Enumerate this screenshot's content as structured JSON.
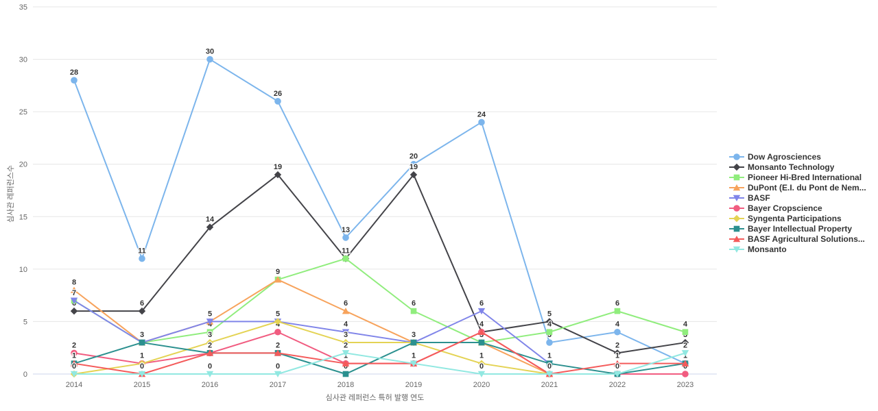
{
  "chart_data": {
    "type": "line",
    "title": "",
    "xlabel": "심사관 레퍼런스 특허 발행 연도",
    "ylabel": "심사관 레퍼런스수",
    "x": [
      "2014",
      "2015",
      "2016",
      "2017",
      "2018",
      "2019",
      "2020",
      "2021",
      "2022",
      "2023"
    ],
    "ylim": [
      0,
      35
    ],
    "yticks": [
      0,
      5,
      10,
      15,
      20,
      25,
      30,
      35
    ],
    "grid": "horizontal",
    "legend_position": "right",
    "data_labels": "on",
    "series": [
      {
        "name": "Dow Agrosciences",
        "color": "#7cb5ec",
        "symbol": "circle",
        "values": [
          28,
          11,
          30,
          26,
          13,
          20,
          24,
          3,
          4,
          1
        ]
      },
      {
        "name": "Monsanto Technology",
        "color": "#434348",
        "symbol": "diamond",
        "values": [
          6,
          6,
          14,
          19,
          11,
          19,
          4,
          5,
          2,
          3
        ]
      },
      {
        "name": "Pioneer Hi-Bred International",
        "color": "#90ed7d",
        "symbol": "square",
        "values": [
          7,
          3,
          4,
          9,
          11,
          6,
          3,
          4,
          6,
          4
        ]
      },
      {
        "name": "DuPont (E.I. du Pont de Nem...",
        "color": "#f7a35c",
        "symbol": "triangle",
        "values": [
          8,
          3,
          5,
          9,
          6,
          3,
          3,
          0,
          null,
          null
        ]
      },
      {
        "name": "BASF",
        "color": "#8085e9",
        "symbol": "triangle-down",
        "values": [
          7,
          3,
          5,
          5,
          4,
          3,
          6,
          1,
          null,
          null
        ]
      },
      {
        "name": "Bayer Cropscience",
        "color": "#f15c80",
        "symbol": "circle",
        "values": [
          2,
          1,
          2,
          4,
          1,
          1,
          4,
          0,
          0,
          0
        ]
      },
      {
        "name": "Syngenta Participations",
        "color": "#e4d354",
        "symbol": "diamond",
        "values": [
          0,
          1,
          3,
          5,
          3,
          3,
          1,
          0,
          null,
          null
        ]
      },
      {
        "name": "Bayer Intellectual Property",
        "color": "#2b908f",
        "symbol": "square",
        "values": [
          1,
          3,
          2,
          2,
          0,
          3,
          3,
          1,
          0,
          1
        ]
      },
      {
        "name": "BASF Agricultural Solutions...",
        "color": "#f45b5b",
        "symbol": "triangle",
        "values": [
          1,
          0,
          2,
          2,
          1,
          1,
          4,
          0,
          1,
          1
        ]
      },
      {
        "name": "Monsanto",
        "color": "#91e8e1",
        "symbol": "triangle-down",
        "values": [
          0,
          0,
          0,
          0,
          2,
          1,
          0,
          0,
          0,
          2
        ]
      }
    ],
    "colors": {
      "gridline": "#e6e6e6",
      "axis_line": "#ccd6eb",
      "tick_label": "#666666",
      "axis_title": "#666666",
      "data_label": "#333333",
      "legend_text": "#333333"
    }
  }
}
